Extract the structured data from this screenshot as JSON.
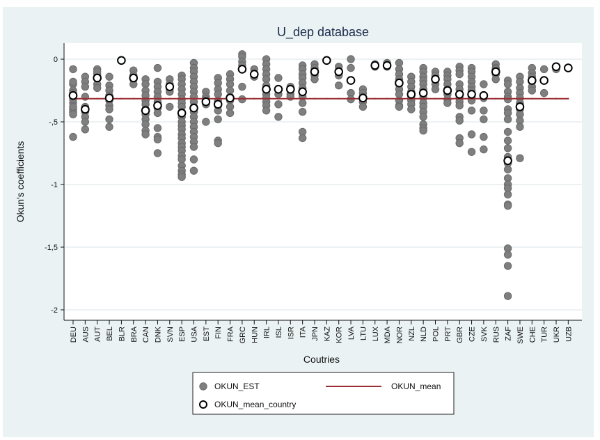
{
  "chart_data": {
    "type": "scatter",
    "title": "U_dep database",
    "xlabel": "Coutries",
    "ylabel": "Okun's coefficients",
    "ylim": [
      -2.05,
      0.13
    ],
    "yticks": [
      0,
      -0.5,
      -1,
      -1.5,
      -2
    ],
    "ytick_labels": [
      "0",
      "-,5",
      "-1",
      "-1,5",
      "-2"
    ],
    "grid": true,
    "legend_position": "bottom",
    "colors": {
      "estimate_fill": "#7f7f7f",
      "estimate_stroke": "#6a6a6a",
      "mean_line": "#9b2c33",
      "mean_country_stroke": "#000000",
      "background": "#eaf2f3",
      "plot_background": "#ffffff",
      "grid": "#e6eef0",
      "title": "#1a2b4c"
    },
    "categories": [
      "DEU",
      "AUS",
      "AUT",
      "BEL",
      "BLR",
      "BRA",
      "CAN",
      "DNK",
      "SVN",
      "ESP",
      "USA",
      "EST",
      "FIN",
      "FRA",
      "GRC",
      "HUN",
      "IRL",
      "ISL",
      "ISR",
      "ITA",
      "JPN",
      "KAZ",
      "KOR",
      "LVA",
      "LTU",
      "LUX",
      "MDA",
      "NOR",
      "NZL",
      "NLD",
      "POL",
      "PRT",
      "GBR",
      "CZE",
      "SVK",
      "RUS",
      "ZAF",
      "SWE",
      "CHE",
      "TUR",
      "UKR",
      "UZB"
    ],
    "series": [
      {
        "name": "OKUN_EST",
        "marker": "filled-circle",
        "values": [
          [
            -0.08,
            -0.2,
            -0.25,
            -0.3,
            -0.35,
            -0.4,
            -0.42,
            -0.44,
            -0.62,
            -0.18,
            -0.27,
            -0.32,
            -0.38
          ],
          [
            -0.14,
            -0.18,
            -0.22,
            -0.42,
            -0.46,
            -0.5,
            -0.56,
            -0.3,
            -0.38
          ],
          [
            -0.08,
            -0.12,
            -0.15,
            -0.2,
            -0.23,
            -0.1
          ],
          [
            -0.14,
            -0.21,
            -0.25,
            -0.29,
            -0.33,
            -0.37,
            -0.4,
            -0.48,
            -0.54
          ],
          [],
          [
            -0.09,
            -0.13,
            -0.16,
            -0.2
          ],
          [
            -0.16,
            -0.2,
            -0.25,
            -0.29,
            -0.33,
            -0.36,
            -0.4,
            -0.44,
            -0.48,
            -0.52,
            -0.57,
            -0.6
          ],
          [
            -0.07,
            -0.18,
            -0.22,
            -0.26,
            -0.3,
            -0.34,
            -0.39,
            -0.43,
            -0.55,
            -0.62,
            -0.64,
            -0.75
          ],
          [
            -0.16,
            -0.2,
            -0.24,
            -0.26,
            -0.38
          ],
          [
            -0.13,
            -0.16,
            -0.2,
            -0.24,
            -0.28,
            -0.32,
            -0.35,
            -0.38,
            -0.42,
            -0.46,
            -0.5,
            -0.53,
            -0.56,
            -0.6,
            -0.63,
            -0.67,
            -0.7,
            -0.73,
            -0.77,
            -0.8,
            -0.85,
            -0.89,
            -0.92,
            -0.94
          ],
          [
            -0.03,
            -0.07,
            -0.1,
            -0.14,
            -0.18,
            -0.22,
            -0.26,
            -0.3,
            -0.34,
            -0.38,
            -0.42,
            -0.46,
            -0.5,
            -0.54,
            -0.58,
            -0.62,
            -0.66,
            -0.7,
            -0.8,
            -0.89
          ],
          [
            -0.26,
            -0.3,
            -0.32,
            -0.36,
            -0.5
          ],
          [
            -0.15,
            -0.19,
            -0.24,
            -0.28,
            -0.33,
            -0.37,
            -0.41,
            -0.48,
            -0.65,
            -0.67
          ],
          [
            -0.12,
            -0.16,
            -0.2,
            -0.25,
            -0.3,
            -0.33,
            -0.38,
            -0.43
          ],
          [
            0.04,
            0.02,
            -0.02,
            -0.05,
            -0.08,
            -0.22,
            -0.32
          ],
          [
            -0.08,
            -0.12,
            -0.14
          ],
          [
            0.0,
            -0.04,
            -0.08,
            -0.12,
            -0.16,
            -0.21,
            -0.28,
            -0.31,
            -0.34,
            -0.37,
            -0.41
          ],
          [
            -0.15,
            -0.24,
            -0.28,
            -0.36,
            -0.46
          ],
          [
            -0.22,
            -0.25,
            -0.28,
            -0.3
          ],
          [
            -0.05,
            -0.08,
            -0.12,
            -0.15,
            -0.19,
            -0.23,
            -0.27,
            -0.3,
            -0.35,
            -0.42,
            -0.58,
            -0.63
          ],
          [
            -0.04,
            -0.07,
            -0.1,
            -0.13,
            -0.16
          ],
          [],
          [
            -0.06,
            -0.13,
            -0.21
          ],
          [
            0.0,
            -0.07,
            -0.27,
            -0.32
          ],
          [
            -0.24,
            -0.27,
            -0.3,
            -0.34,
            -0.38
          ],
          [
            -0.04,
            -0.06
          ],
          [
            -0.03,
            -0.06
          ],
          [
            -0.03,
            -0.08,
            -0.12,
            -0.16,
            -0.2,
            -0.24,
            -0.28,
            -0.33,
            -0.37,
            -0.38
          ],
          [
            -0.14,
            -0.18,
            -0.22,
            -0.26,
            -0.3,
            -0.33,
            -0.36,
            -0.4
          ],
          [
            -0.07,
            -0.1,
            -0.14,
            -0.17,
            -0.2,
            -0.24,
            -0.28,
            -0.31,
            -0.35,
            -0.38,
            -0.42,
            -0.46,
            -0.52,
            -0.55,
            -0.57
          ],
          [
            -0.1,
            -0.13,
            -0.16,
            -0.2,
            -0.24
          ],
          [
            -0.1,
            -0.13,
            -0.16,
            -0.2,
            -0.24,
            -0.28,
            -0.32,
            -0.35
          ],
          [
            -0.06,
            -0.09,
            -0.12,
            -0.2,
            -0.24,
            -0.28,
            -0.31,
            -0.34,
            -0.37,
            -0.46,
            -0.49,
            -0.63,
            -0.67
          ],
          [
            -0.07,
            -0.1,
            -0.14,
            -0.18,
            -0.22,
            -0.25,
            -0.3,
            -0.33,
            -0.41,
            -0.6,
            -0.74
          ],
          [
            -0.2,
            -0.31,
            -0.41,
            -0.48,
            -0.62,
            -0.72
          ],
          [
            -0.04,
            -0.07,
            -0.08,
            -0.12,
            -0.16
          ],
          [
            -0.17,
            -0.2,
            -0.26,
            -0.3,
            -0.32,
            -0.4,
            -0.43,
            -0.48,
            -0.58,
            -0.65,
            -0.71,
            -0.78,
            -0.83,
            -0.88,
            -0.95,
            -1.0,
            -1.03,
            -1.08,
            -1.16,
            -1.17,
            -1.51,
            -1.56,
            -1.65,
            -1.89
          ],
          [
            -0.14,
            -0.18,
            -0.23,
            -0.27,
            -0.31,
            -0.35,
            -0.37,
            -0.4,
            -0.44,
            -0.49,
            -0.54,
            -0.79
          ],
          [
            -0.07,
            -0.11,
            -0.14,
            -0.18,
            -0.22,
            -0.25
          ],
          [
            -0.08,
            -0.27
          ],
          [
            -0.06,
            -0.08
          ],
          []
        ]
      },
      {
        "name": "OKUN_mean_country",
        "marker": "hollow-circle",
        "values": [
          -0.29,
          -0.4,
          -0.15,
          -0.31,
          -0.01,
          -0.15,
          -0.41,
          -0.37,
          -0.22,
          -0.43,
          -0.39,
          -0.34,
          -0.36,
          -0.31,
          -0.08,
          -0.12,
          -0.24,
          -0.24,
          -0.24,
          -0.26,
          -0.1,
          -0.01,
          -0.1,
          -0.17,
          -0.31,
          -0.05,
          -0.05,
          -0.19,
          -0.28,
          -0.27,
          -0.16,
          -0.25,
          -0.28,
          -0.28,
          -0.29,
          -0.1,
          -0.81,
          -0.38,
          -0.17,
          -0.17,
          -0.06,
          -0.07
        ]
      },
      {
        "name": "OKUN_mean",
        "marker": "line",
        "value": -0.315
      }
    ],
    "legend": [
      {
        "label": "OKUN_EST",
        "symbol": "filled-circle"
      },
      {
        "label": "OKUN_mean",
        "symbol": "line"
      },
      {
        "label": "OKUN_mean_country",
        "symbol": "hollow-circle"
      }
    ]
  }
}
